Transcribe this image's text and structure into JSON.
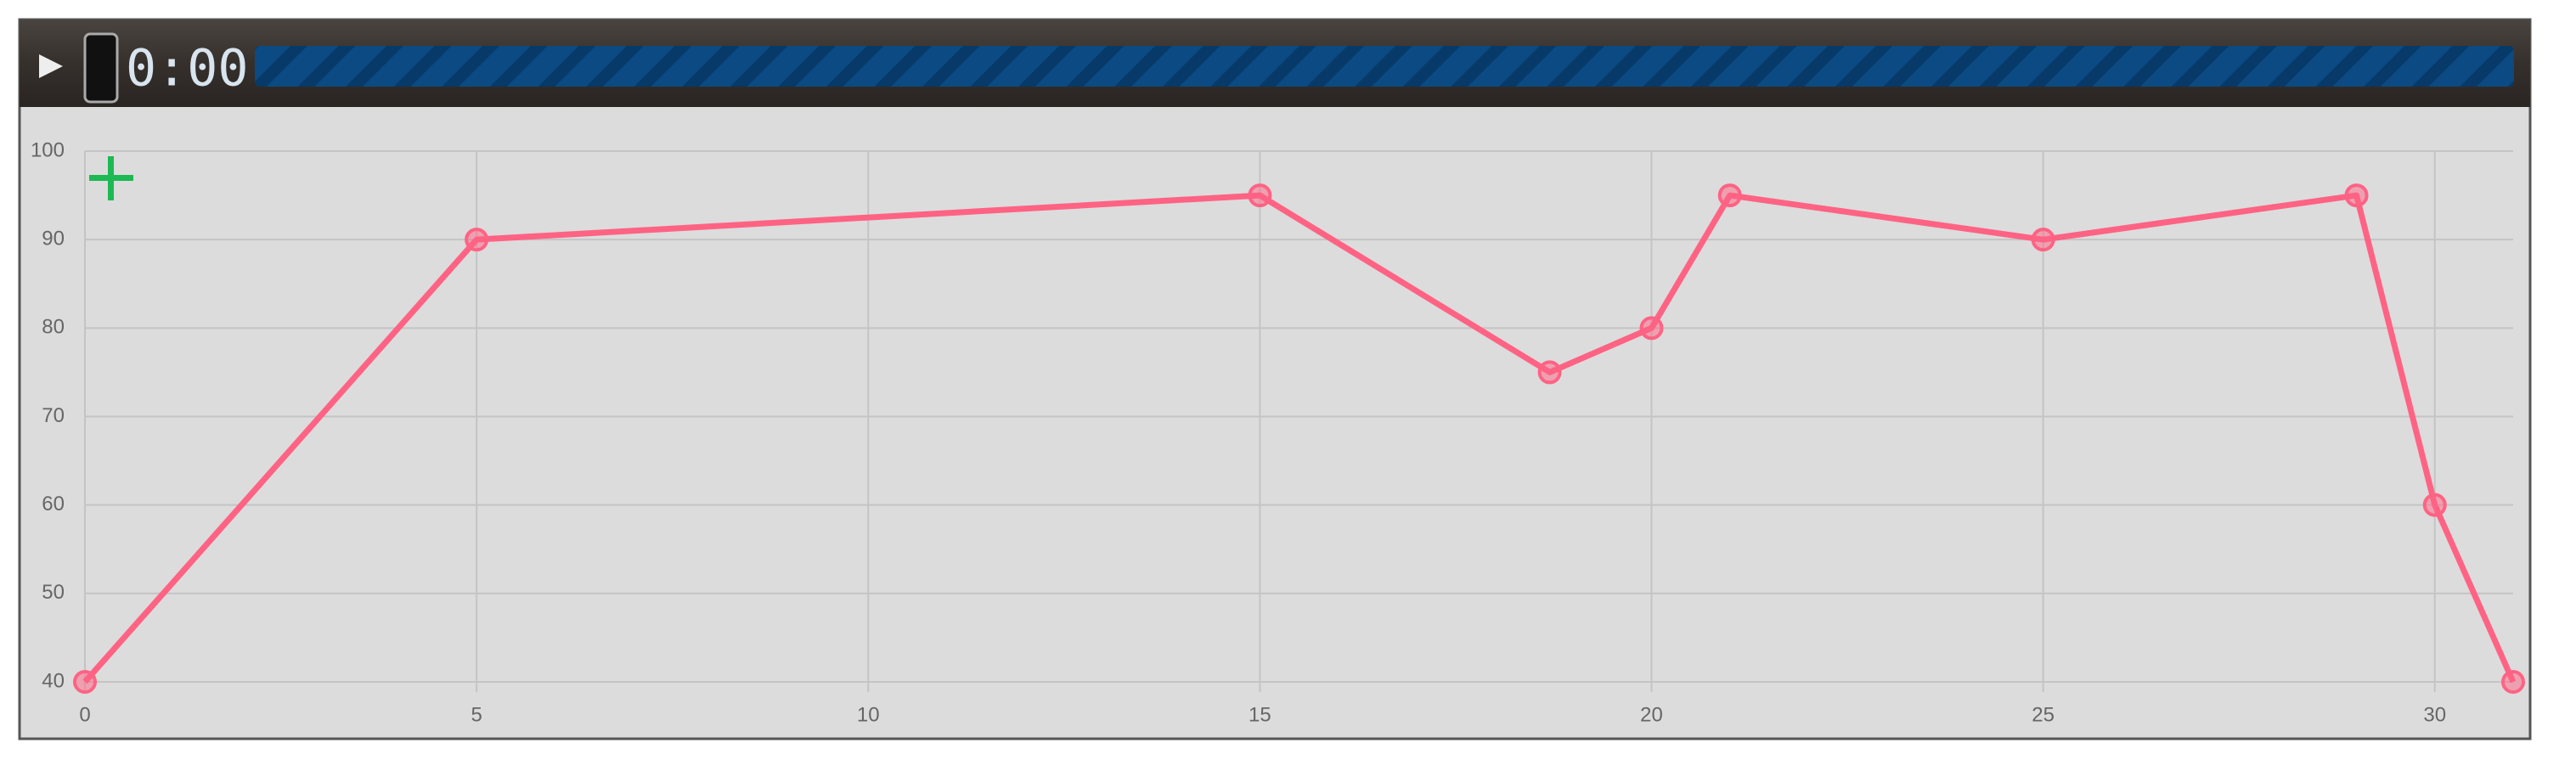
{
  "player": {
    "time": "0:00"
  },
  "chart_data": {
    "type": "line",
    "x": [
      0,
      5,
      15,
      18.7,
      20,
      21,
      25,
      29,
      30,
      31
    ],
    "values": [
      40,
      90,
      95,
      75,
      80,
      95,
      90,
      95,
      60,
      40
    ],
    "color": "#ff6384",
    "xlim": [
      0,
      31
    ],
    "xticks": [
      0,
      5,
      10,
      15,
      20,
      25,
      30
    ],
    "ylim": [
      40,
      100
    ],
    "yticks": [
      40,
      50,
      60,
      70,
      80,
      90,
      100
    ],
    "grid": true
  }
}
